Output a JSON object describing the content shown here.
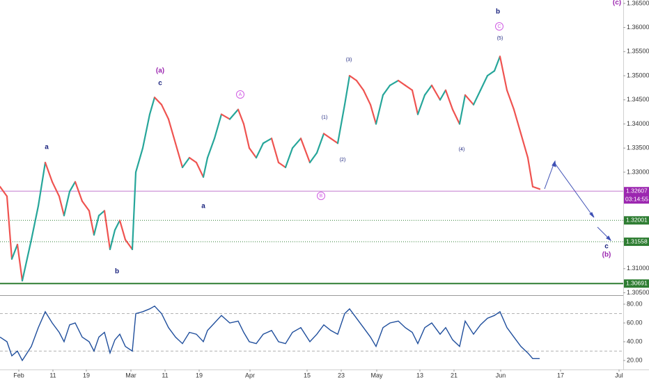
{
  "chart_data": [
    {
      "type": "line",
      "x": [
        0,
        2,
        3.4,
        5,
        6.4,
        9,
        11,
        13,
        15,
        17,
        18.4,
        20,
        21.6,
        23.6,
        25.6,
        27,
        28.4,
        30,
        31.6,
        33,
        34.4,
        36,
        38,
        39,
        41,
        43,
        44.4,
        46.4,
        48.4,
        50.4,
        52.4,
        54.4,
        56.4,
        58.4,
        59.6,
        61.6,
        63.6,
        66,
        68.4,
        70,
        71.6,
        73.6,
        75.6,
        78,
        80,
        82,
        84,
        86.4,
        89,
        91,
        93,
        95,
        97,
        99,
        100.4,
        102.4,
        104.4,
        106.4,
        108,
        110,
        112,
        114.4,
        116.4,
        118.4,
        120,
        122,
        124,
        126.4,
        128,
        130,
        132,
        133.6,
        136,
        138,
        140,
        142,
        143.6,
        145.6,
        147.6,
        149.6,
        151.6,
        153,
        155
      ],
      "values": [
        1.327,
        1.325,
        1.312,
        1.315,
        1.3075,
        1.316,
        1.323,
        1.332,
        1.328,
        1.325,
        1.321,
        1.326,
        1.328,
        1.324,
        1.322,
        1.317,
        1.321,
        1.322,
        1.314,
        1.318,
        1.32,
        1.316,
        1.314,
        1.33,
        1.335,
        1.342,
        1.3455,
        1.344,
        1.341,
        1.336,
        1.331,
        1.333,
        1.332,
        1.329,
        1.333,
        1.337,
        1.342,
        1.341,
        1.343,
        1.34,
        1.335,
        1.333,
        1.336,
        1.337,
        1.332,
        1.331,
        1.335,
        1.337,
        1.332,
        1.334,
        1.338,
        1.337,
        1.336,
        1.344,
        1.35,
        1.349,
        1.347,
        1.344,
        1.34,
        1.346,
        1.348,
        1.349,
        1.348,
        1.347,
        1.342,
        1.346,
        1.348,
        1.345,
        1.347,
        1.343,
        1.34,
        1.346,
        1.344,
        1.347,
        1.35,
        1.351,
        1.354,
        1.347,
        1.343,
        1.338,
        1.333,
        1.327,
        1.3265
      ],
      "up_color": "#26a69a",
      "down_color": "#ef5350",
      "xlim": [
        0,
        179
      ],
      "ylim": [
        1.3045,
        1.3657
      ],
      "yticks": [
        {
          "value": 1.365,
          "label": "1.36500"
        },
        {
          "value": 1.36,
          "label": "1.36000"
        },
        {
          "value": 1.355,
          "label": "1.35500"
        },
        {
          "value": 1.35,
          "label": "1.35000"
        },
        {
          "value": 1.345,
          "label": "1.34500"
        },
        {
          "value": 1.34,
          "label": "1.34000"
        },
        {
          "value": 1.335,
          "label": "1.33500"
        },
        {
          "value": 1.33,
          "label": "1.33000"
        },
        {
          "value": 1.31,
          "label": "1.31000"
        },
        {
          "value": 1.305,
          "label": "1.30500"
        }
      ],
      "current_price": {
        "value": 1.32607,
        "label": "1.32607",
        "countdown": "03:14:55",
        "color": "#9c27b0"
      },
      "levels": [
        {
          "value": 1.32001,
          "label": "1.32001",
          "color": "#2e7d32",
          "style": "dotted"
        },
        {
          "value": 1.31558,
          "label": "1.31558",
          "color": "#2e7d32",
          "style": "dotted"
        },
        {
          "value": 1.30691,
          "label": "1.30691",
          "color": "#2e7d32",
          "style": "solid"
        }
      ],
      "annotations": [
        {
          "text": "a",
          "color": "#1a237e"
        },
        {
          "text": "b",
          "color": "#1a237e"
        },
        {
          "text": "(a)",
          "color": "#9c27b0"
        },
        {
          "text": "c",
          "color": "#1a237e"
        },
        {
          "text": "a",
          "color": "#1a237e"
        },
        {
          "text": "A",
          "color": "#d05ce3"
        },
        {
          "text": "(1)",
          "color": "#1a237e"
        },
        {
          "text": "(2)",
          "color": "#1a237e"
        },
        {
          "text": "(3)",
          "color": "#1a237e"
        },
        {
          "text": "B",
          "color": "#d05ce3"
        },
        {
          "text": "(4)",
          "color": "#1a237e"
        },
        {
          "text": "b",
          "color": "#1a237e"
        },
        {
          "text": "C",
          "color": "#d05ce3"
        },
        {
          "text": "(5)",
          "color": "#1a237e"
        },
        {
          "text": "c",
          "color": "#1a237e"
        },
        {
          "text": "(b)",
          "color": "#9c27b0"
        },
        {
          "text": "(c)",
          "color": "#9c27b0"
        }
      ]
    },
    {
      "type": "line",
      "x": [
        0,
        2,
        3.4,
        5,
        6.4,
        9,
        11,
        13,
        15,
        17,
        18.4,
        20,
        21.6,
        23.6,
        25.6,
        27,
        28.4,
        30,
        31.6,
        33,
        34.4,
        36,
        38,
        39,
        41,
        43,
        44.4,
        46.4,
        48.4,
        50.4,
        52.4,
        54.4,
        56.4,
        58.4,
        59.6,
        61.6,
        63.6,
        66,
        68.4,
        70,
        71.6,
        73.6,
        75.6,
        78,
        80,
        82,
        84,
        86.4,
        89,
        91,
        93,
        95,
        97,
        99,
        100.4,
        102.4,
        104.4,
        106.4,
        108,
        110,
        112,
        114.4,
        116.4,
        118.4,
        120,
        122,
        124,
        126.4,
        128,
        130,
        132,
        133.6,
        136,
        138,
        140,
        142,
        143.6,
        145.6,
        147.6,
        149.6,
        151.6,
        153,
        155
      ],
      "values": [
        45,
        40,
        25,
        30,
        20,
        35,
        55,
        72,
        60,
        50,
        40,
        58,
        60,
        45,
        40,
        30,
        45,
        50,
        28,
        42,
        48,
        35,
        30,
        70,
        72,
        75,
        78,
        70,
        55,
        45,
        38,
        50,
        48,
        40,
        52,
        60,
        68,
        60,
        62,
        50,
        40,
        38,
        48,
        52,
        40,
        38,
        50,
        55,
        40,
        48,
        58,
        52,
        48,
        70,
        75,
        65,
        55,
        45,
        35,
        55,
        60,
        62,
        55,
        50,
        38,
        55,
        60,
        48,
        55,
        42,
        35,
        62,
        48,
        58,
        65,
        68,
        72,
        55,
        45,
        35,
        28,
        22,
        22
      ],
      "color": "#1f4e9c",
      "xlim": [
        0,
        179
      ],
      "ylim": [
        10.4,
        89.6
      ],
      "yticks": [
        {
          "value": 80,
          "label": "80.00"
        },
        {
          "value": 60,
          "label": "60.00"
        },
        {
          "value": 40,
          "label": "40.00"
        },
        {
          "value": 20,
          "label": "20.00"
        }
      ],
      "bands": [
        70,
        30
      ],
      "xticks": [
        {
          "value": 5.4,
          "label": "Feb"
        },
        {
          "value": 15.2,
          "label": "11"
        },
        {
          "value": 24.8,
          "label": "19"
        },
        {
          "value": 37.6,
          "label": "Mar"
        },
        {
          "value": 47.4,
          "label": "11"
        },
        {
          "value": 57.2,
          "label": "19"
        },
        {
          "value": 71.8,
          "label": "Apr"
        },
        {
          "value": 88.2,
          "label": "15"
        },
        {
          "value": 98,
          "label": "23"
        },
        {
          "value": 108.2,
          "label": "May"
        },
        {
          "value": 120.6,
          "label": "13"
        },
        {
          "value": 130.4,
          "label": "21"
        },
        {
          "value": 143.8,
          "label": "Jun"
        },
        {
          "value": 161,
          "label": "17"
        },
        {
          "value": 177.8,
          "label": "Jul"
        }
      ]
    }
  ]
}
